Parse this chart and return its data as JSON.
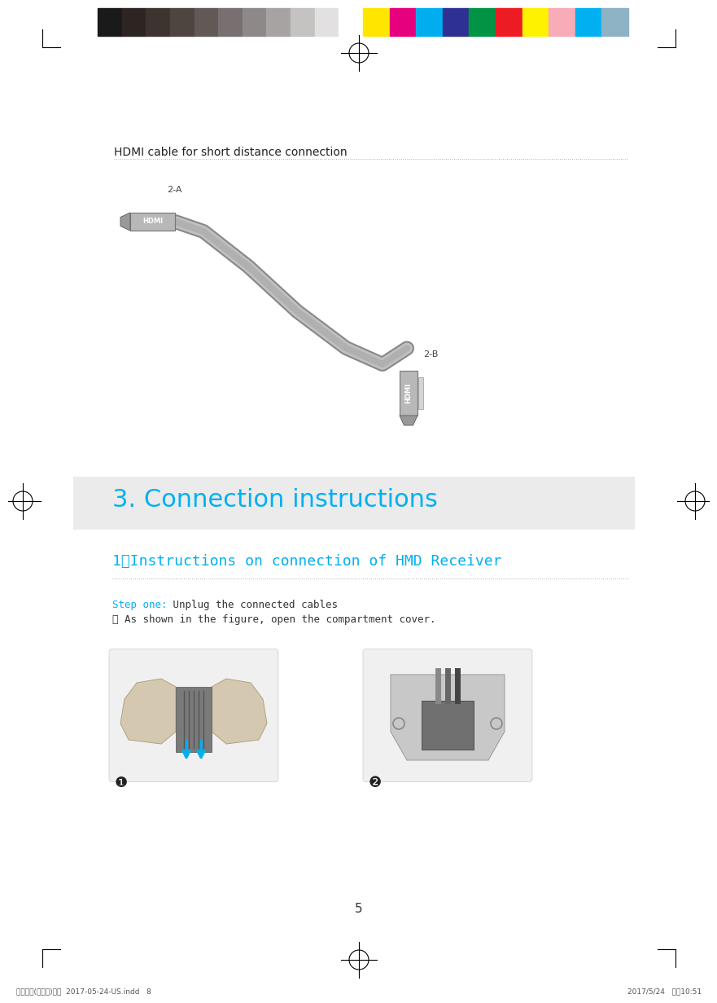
{
  "page_width": 8.62,
  "page_height": 12.08,
  "dpi": 100,
  "bg_color": "#ffffff",
  "color_bar": {
    "colors_left": [
      "#1a1a1a",
      "#2d2522",
      "#3d3430",
      "#4e4541",
      "#615956",
      "#787070",
      "#8f8888",
      "#a8a3a3",
      "#c5c2c2",
      "#e2e0e0",
      "#ffffff"
    ],
    "colors_right": [
      "#ffe600",
      "#e6007e",
      "#00aeef",
      "#2e3192",
      "#009444",
      "#ed1c24",
      "#fff200",
      "#f7acb8",
      "#00b0f0",
      "#8db3c4"
    ]
  },
  "cyan_color": "#00b0f0",
  "section_title": "3. Connection instructions",
  "section_title_color": "#00b0f0",
  "section_bg_color": "#ebebeb",
  "section_title_fontsize": 22,
  "subsection_title": "1、Instructions on connection of HMD Receiver",
  "subsection_title_color": "#00b0f0",
  "subsection_fontsize": 13,
  "hdmi_label": "HDMI cable for short distance connection",
  "hdmi_label_fontsize": 10,
  "step_one_label": "Step one:",
  "step_one_text": " Unplug the connected cables",
  "step_circle_text": "① As shown in the figure, open the compartment cover.",
  "step_fontsize": 9,
  "label_2a": "2-A",
  "label_2b": "2-B",
  "label_hdmi_a": "HDMI",
  "label_hdmi_b": "HDMI",
  "page_number": "5",
  "footer_left": "新版印刷(无蓝牙)英文  2017-05-24-US.indd   8",
  "footer_right": "2017/5/24   上午10:51",
  "dot_line_color": "#999999",
  "registration_mark_color": "#000000"
}
